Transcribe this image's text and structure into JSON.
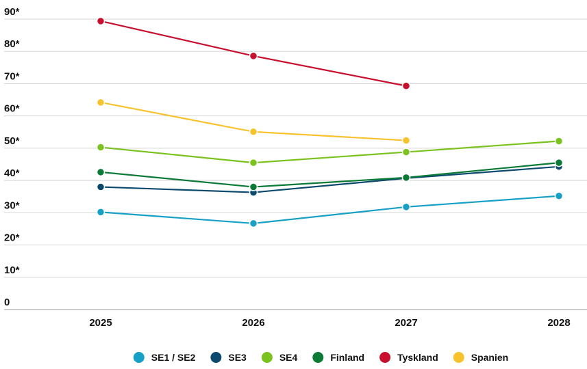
{
  "chart_data": {
    "type": "line",
    "title": "",
    "xlabel": "",
    "ylabel": "",
    "categories": [
      "2025",
      "2026",
      "2027",
      "2028"
    ],
    "ylim": [
      0,
      90
    ],
    "yticks": [
      "0",
      "10*",
      "20*",
      "30*",
      "40*",
      "50*",
      "60*",
      "70*",
      "80*",
      "90*"
    ],
    "grid": true,
    "legend_position": "bottom",
    "series": [
      {
        "name": "SE1 / SE2",
        "color": "#17a0c6",
        "values": [
          30.2,
          26.7,
          31.8,
          35.2
        ]
      },
      {
        "name": "SE3",
        "color": "#0b4a6e",
        "values": [
          38.0,
          36.3,
          40.7,
          44.3
        ]
      },
      {
        "name": "SE4",
        "color": "#7ac21e",
        "values": [
          50.3,
          45.5,
          48.8,
          52.2
        ]
      },
      {
        "name": "Finland",
        "color": "#0b7a36",
        "values": [
          42.6,
          38.0,
          40.9,
          45.5
        ]
      },
      {
        "name": "Tyskland",
        "color": "#c8102e",
        "values": [
          89.4,
          78.6,
          69.3,
          null
        ]
      },
      {
        "name": "Spanien",
        "color": "#f8c22c",
        "values": [
          64.2,
          55.1,
          52.4,
          null
        ]
      }
    ]
  }
}
